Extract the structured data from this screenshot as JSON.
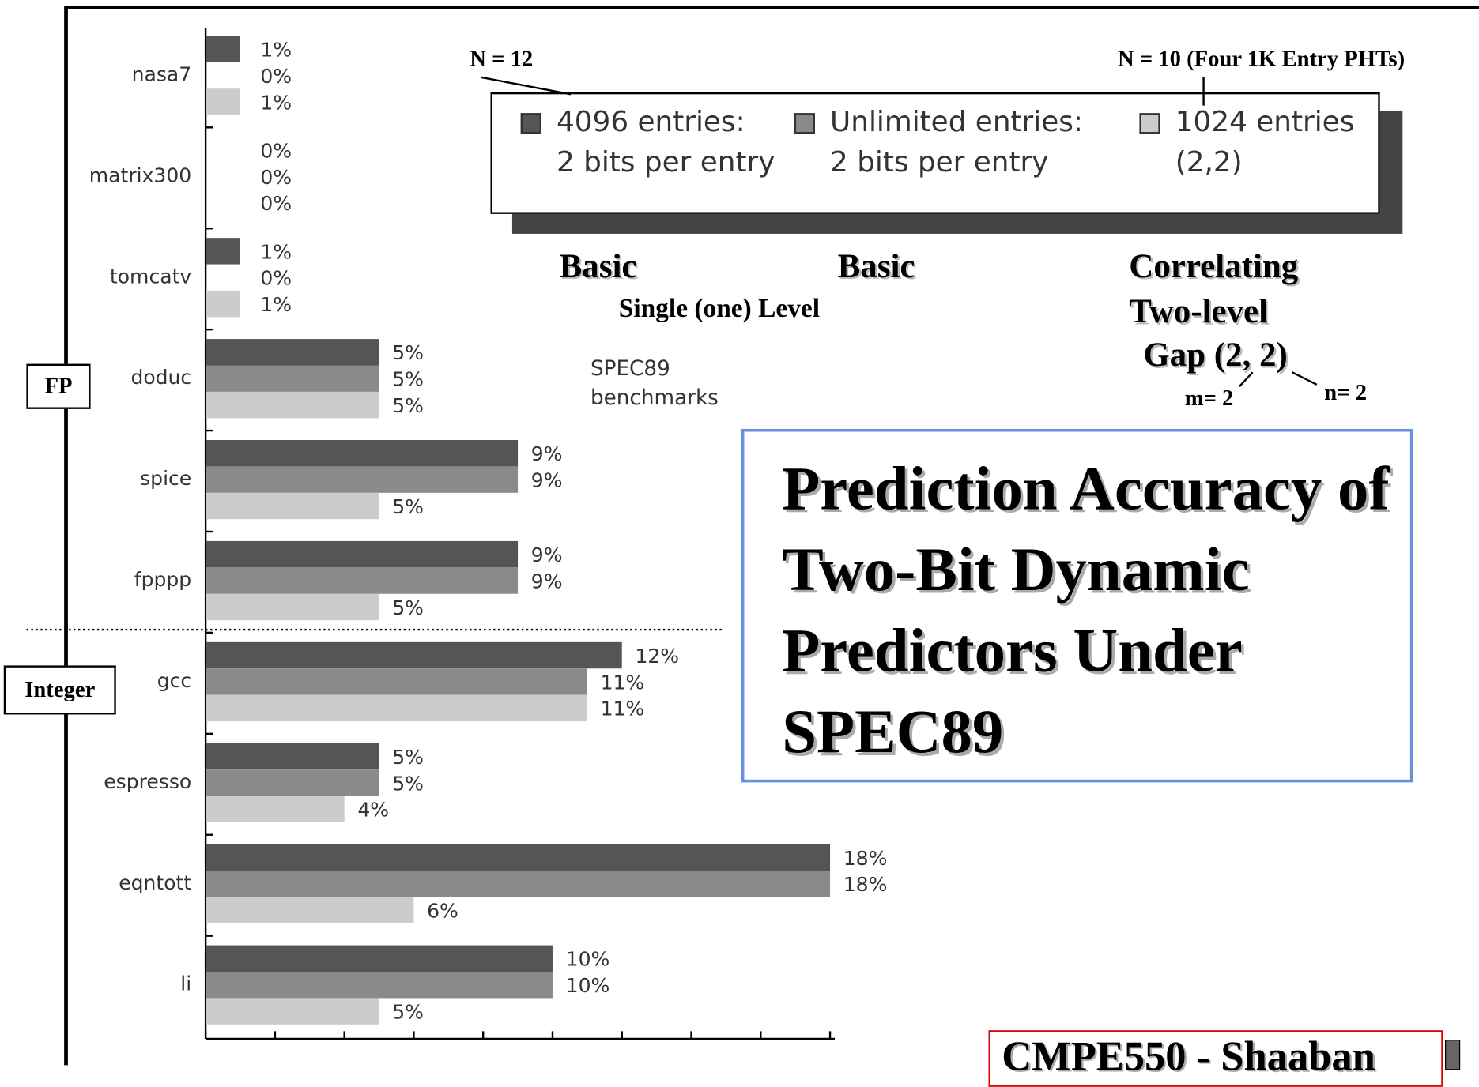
{
  "chart_data": {
    "type": "bar",
    "orientation": "horizontal",
    "title": "Prediction Accuracy of Two-Bit Dynamic Predictors Under SPEC89",
    "categories": [
      "nasa7",
      "matrix300",
      "tomcatv",
      "doduc",
      "spice",
      "fpppp",
      "gcc",
      "espresso",
      "eqntott",
      "li"
    ],
    "series": [
      {
        "name": "4096 entries:\n2 bits per entry",
        "color": "#555555",
        "values": [
          1,
          0,
          1,
          5,
          9,
          9,
          12,
          5,
          18,
          10
        ],
        "value_labels": [
          "1%",
          "0%",
          "1%",
          "5%",
          "9%",
          "9%",
          "12%",
          "5%",
          "18%",
          "10%"
        ]
      },
      {
        "name": "Unlimited entries:\n2 bits per entry",
        "color": "#8a8a8a",
        "values": [
          0,
          0,
          0,
          5,
          9,
          9,
          11,
          5,
          18,
          10
        ],
        "value_labels": [
          "0%",
          "0%",
          "0%",
          "5%",
          "9%",
          "9%",
          "11%",
          "5%",
          "18%",
          "10%"
        ]
      },
      {
        "name": "1024 entries\n(2,2)",
        "color": "#cccccc",
        "values": [
          1,
          0,
          1,
          5,
          5,
          5,
          11,
          4,
          6,
          5
        ],
        "value_labels": [
          "1%",
          "0%",
          "1%",
          "5%",
          "5%",
          "5%",
          "11%",
          "4%",
          "6%",
          "5%"
        ]
      }
    ],
    "xlim": [
      0,
      18
    ],
    "xticks": [
      0,
      2,
      4,
      6,
      8,
      10,
      12,
      14,
      16,
      18
    ],
    "annotations": {
      "n12": "N = 12",
      "n10": "N = 10 (Four 1K Entry PHTs)",
      "basic1": "Basic",
      "basic2": "Basic",
      "single": "Single (one) Level",
      "correlating": "Correlating\nTwo-level",
      "gap": "Gap (2, 2)",
      "m": "m= 2",
      "n": "n= 2",
      "bench": "SPEC89\nbenchmarks",
      "fp": "FP",
      "integer": "Integer",
      "footer": "CMPE550 - Shaaban"
    }
  }
}
